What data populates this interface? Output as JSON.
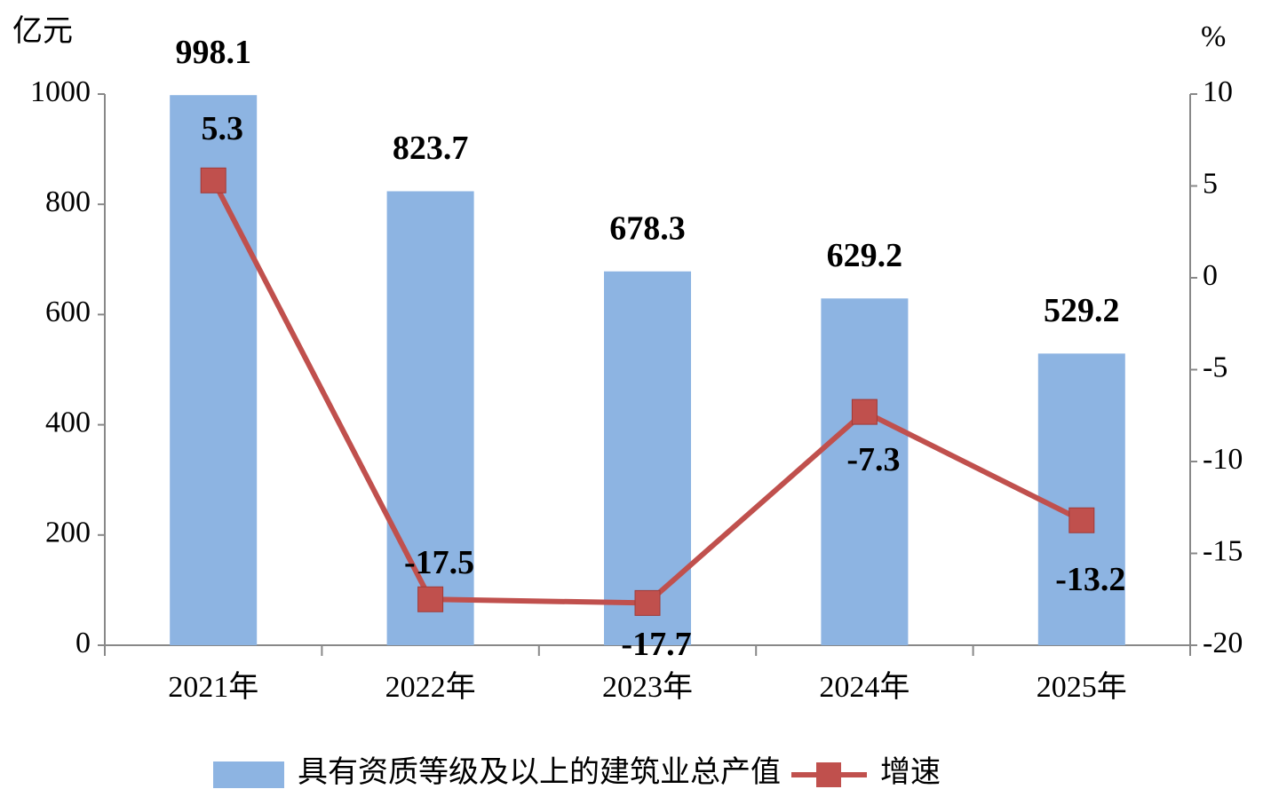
{
  "chart_data": {
    "type": "bar",
    "y_unit": "亿元",
    "y2_unit": "%",
    "categories": [
      "2021年",
      "2022年",
      "2023年",
      "2024年",
      "2025年"
    ],
    "series": [
      {
        "name": "具有资质等级及以上的建筑业总产值",
        "type": "bar",
        "color": "#8db4e2",
        "values": [
          998.1,
          823.7,
          678.3,
          629.2,
          529.2
        ]
      },
      {
        "name": "增速",
        "type": "line",
        "axis": "y2",
        "color": "#c0504d",
        "values": [
          5.3,
          -17.5,
          -17.7,
          -7.3,
          -13.2
        ]
      }
    ],
    "ylim": [
      0,
      1000
    ],
    "yticks": [
      0,
      200,
      400,
      600,
      800,
      1000
    ],
    "y2lim": [
      -20,
      10
    ],
    "y2ticks": [
      -20,
      -15,
      -10,
      -5,
      0,
      5,
      10
    ],
    "legend": "bottom"
  }
}
